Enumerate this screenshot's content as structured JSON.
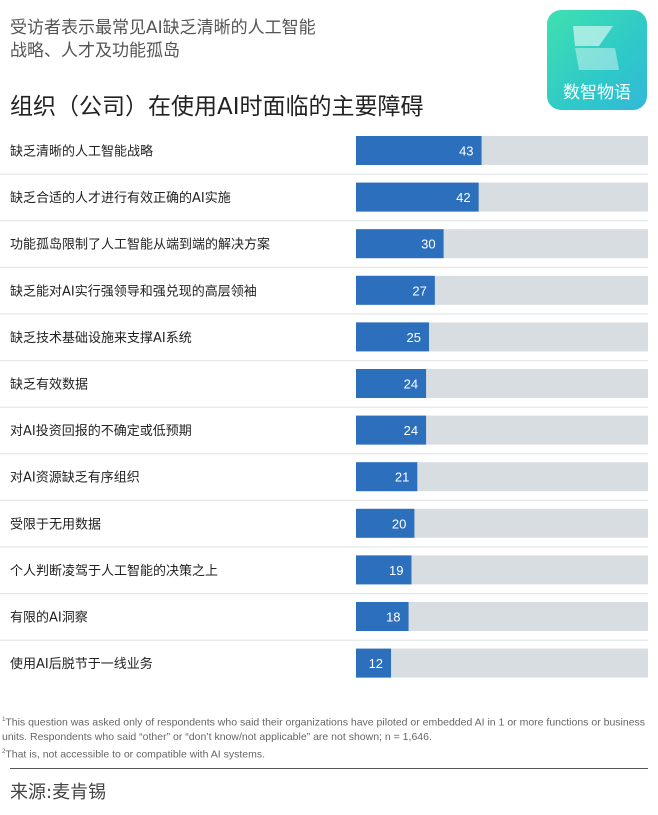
{
  "header": {
    "subtitle_line1": "受访者表示最常见AI缺乏清晰的人工智能",
    "subtitle_line2": "战略、人才及功能孤岛",
    "logo_text": "数智物语"
  },
  "chart_data": {
    "type": "bar",
    "orientation": "horizontal",
    "title": "组织（公司）在使用AI时面临的主要障碍",
    "categories": [
      "缺乏清晰的人工智能战略",
      "缺乏合适的人才进行有效正确的AI实施",
      "功能孤岛限制了人工智能从端到端的解决方案",
      "缺乏能对AI实行强领导和强兑现的高层领袖",
      "缺乏技术基础设施来支撑AI系统",
      "缺乏有效数据",
      "对AI投资回报的不确定或低预期",
      "对AI资源缺乏有序组织",
      "受限于无用数据",
      "个人判断凌驾于人工智能的决策之上",
      "有限的AI洞察",
      "使用AI后脱节于一线业务"
    ],
    "values": [
      43,
      42,
      30,
      27,
      25,
      24,
      24,
      21,
      20,
      19,
      18,
      12
    ],
    "xlim": [
      0,
      100
    ],
    "colors": {
      "bar": "#2b6fbd",
      "track": "#d8dde2",
      "divider": "#e3e6e9"
    }
  },
  "footnotes": {
    "n1": "1",
    "line1": "This question was asked only of respondents who said their organizations have piloted or embedded AI in 1 or more functions or business units. Respondents who said “other” or “don’t know/not applicable” are not shown; n = 1,646.",
    "n2": "2",
    "line2": "That is, not accessible to or compatible with AI systems."
  },
  "source": "来源:麦肯锡"
}
